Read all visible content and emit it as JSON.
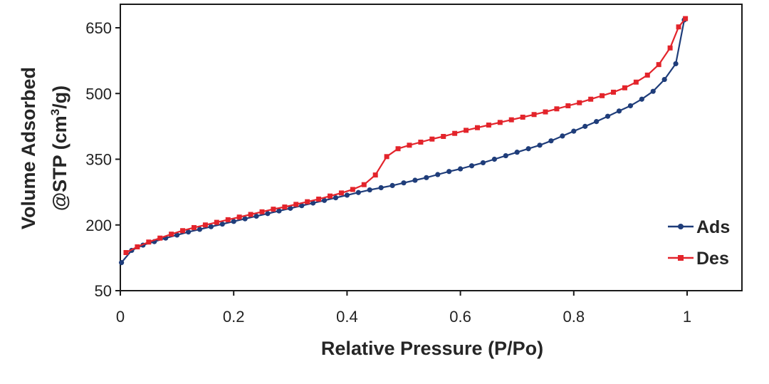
{
  "chart_data": {
    "type": "line",
    "xlabel": "Relative Pressure (P/Po)",
    "ylabel_line1": "Volume Adsorbed",
    "ylabel_line2_prefix": "@STP (cm",
    "ylabel_line2_sup": "3",
    "ylabel_line2_suffix": "/g)",
    "xlim": [
      0,
      1
    ],
    "ylim": [
      50,
      700
    ],
    "x_ticks": [
      0,
      0.2,
      0.4,
      0.6,
      0.8,
      1
    ],
    "x_tick_labels": [
      "0",
      "0.2",
      "0.4",
      "0.6",
      "0.8",
      "1"
    ],
    "y_ticks": [
      50,
      200,
      350,
      500,
      650
    ],
    "y_tick_labels": [
      "50",
      "200",
      "350",
      "500",
      "650"
    ],
    "grid": false,
    "legend_position": "right",
    "series": [
      {
        "name": "Ads",
        "color": "#1f3d7a",
        "points": [
          [
            0.002,
            114
          ],
          [
            0.02,
            142
          ],
          [
            0.04,
            154
          ],
          [
            0.06,
            162
          ],
          [
            0.08,
            170
          ],
          [
            0.1,
            177
          ],
          [
            0.12,
            184
          ],
          [
            0.14,
            190
          ],
          [
            0.16,
            196
          ],
          [
            0.18,
            202
          ],
          [
            0.2,
            208
          ],
          [
            0.22,
            214
          ],
          [
            0.24,
            220
          ],
          [
            0.26,
            226
          ],
          [
            0.28,
            232
          ],
          [
            0.3,
            238
          ],
          [
            0.32,
            244
          ],
          [
            0.34,
            250
          ],
          [
            0.36,
            256
          ],
          [
            0.38,
            262
          ],
          [
            0.4,
            268
          ],
          [
            0.42,
            274
          ],
          [
            0.44,
            280
          ],
          [
            0.46,
            285
          ],
          [
            0.48,
            290
          ],
          [
            0.5,
            296
          ],
          [
            0.52,
            302
          ],
          [
            0.54,
            308
          ],
          [
            0.56,
            315
          ],
          [
            0.58,
            322
          ],
          [
            0.6,
            328
          ],
          [
            0.62,
            335
          ],
          [
            0.64,
            342
          ],
          [
            0.66,
            350
          ],
          [
            0.68,
            358
          ],
          [
            0.7,
            366
          ],
          [
            0.72,
            374
          ],
          [
            0.74,
            382
          ],
          [
            0.76,
            392
          ],
          [
            0.78,
            403
          ],
          [
            0.8,
            414
          ],
          [
            0.82,
            425
          ],
          [
            0.84,
            436
          ],
          [
            0.86,
            448
          ],
          [
            0.88,
            460
          ],
          [
            0.9,
            472
          ],
          [
            0.92,
            487
          ],
          [
            0.94,
            505
          ],
          [
            0.96,
            532
          ],
          [
            0.98,
            568
          ],
          [
            0.995,
            668
          ]
        ]
      },
      {
        "name": "Des",
        "color": "#e3242b",
        "points": [
          [
            0.01,
            137
          ],
          [
            0.03,
            150
          ],
          [
            0.05,
            161
          ],
          [
            0.07,
            170
          ],
          [
            0.09,
            179
          ],
          [
            0.11,
            187
          ],
          [
            0.13,
            194
          ],
          [
            0.15,
            200
          ],
          [
            0.17,
            206
          ],
          [
            0.19,
            212
          ],
          [
            0.21,
            218
          ],
          [
            0.23,
            224
          ],
          [
            0.25,
            230
          ],
          [
            0.27,
            236
          ],
          [
            0.29,
            241
          ],
          [
            0.31,
            247
          ],
          [
            0.33,
            253
          ],
          [
            0.35,
            259
          ],
          [
            0.37,
            266
          ],
          [
            0.39,
            273
          ],
          [
            0.41,
            281
          ],
          [
            0.43,
            292
          ],
          [
            0.45,
            314
          ],
          [
            0.47,
            356
          ],
          [
            0.49,
            374
          ],
          [
            0.51,
            382
          ],
          [
            0.53,
            389
          ],
          [
            0.55,
            396
          ],
          [
            0.57,
            402
          ],
          [
            0.59,
            409
          ],
          [
            0.61,
            416
          ],
          [
            0.63,
            422
          ],
          [
            0.65,
            428
          ],
          [
            0.67,
            434
          ],
          [
            0.69,
            440
          ],
          [
            0.71,
            446
          ],
          [
            0.73,
            452
          ],
          [
            0.75,
            458
          ],
          [
            0.77,
            465
          ],
          [
            0.79,
            472
          ],
          [
            0.81,
            479
          ],
          [
            0.83,
            487
          ],
          [
            0.85,
            495
          ],
          [
            0.87,
            503
          ],
          [
            0.89,
            513
          ],
          [
            0.91,
            526
          ],
          [
            0.93,
            542
          ],
          [
            0.95,
            566
          ],
          [
            0.97,
            604
          ],
          [
            0.985,
            652
          ],
          [
            0.997,
            671
          ]
        ]
      }
    ]
  }
}
